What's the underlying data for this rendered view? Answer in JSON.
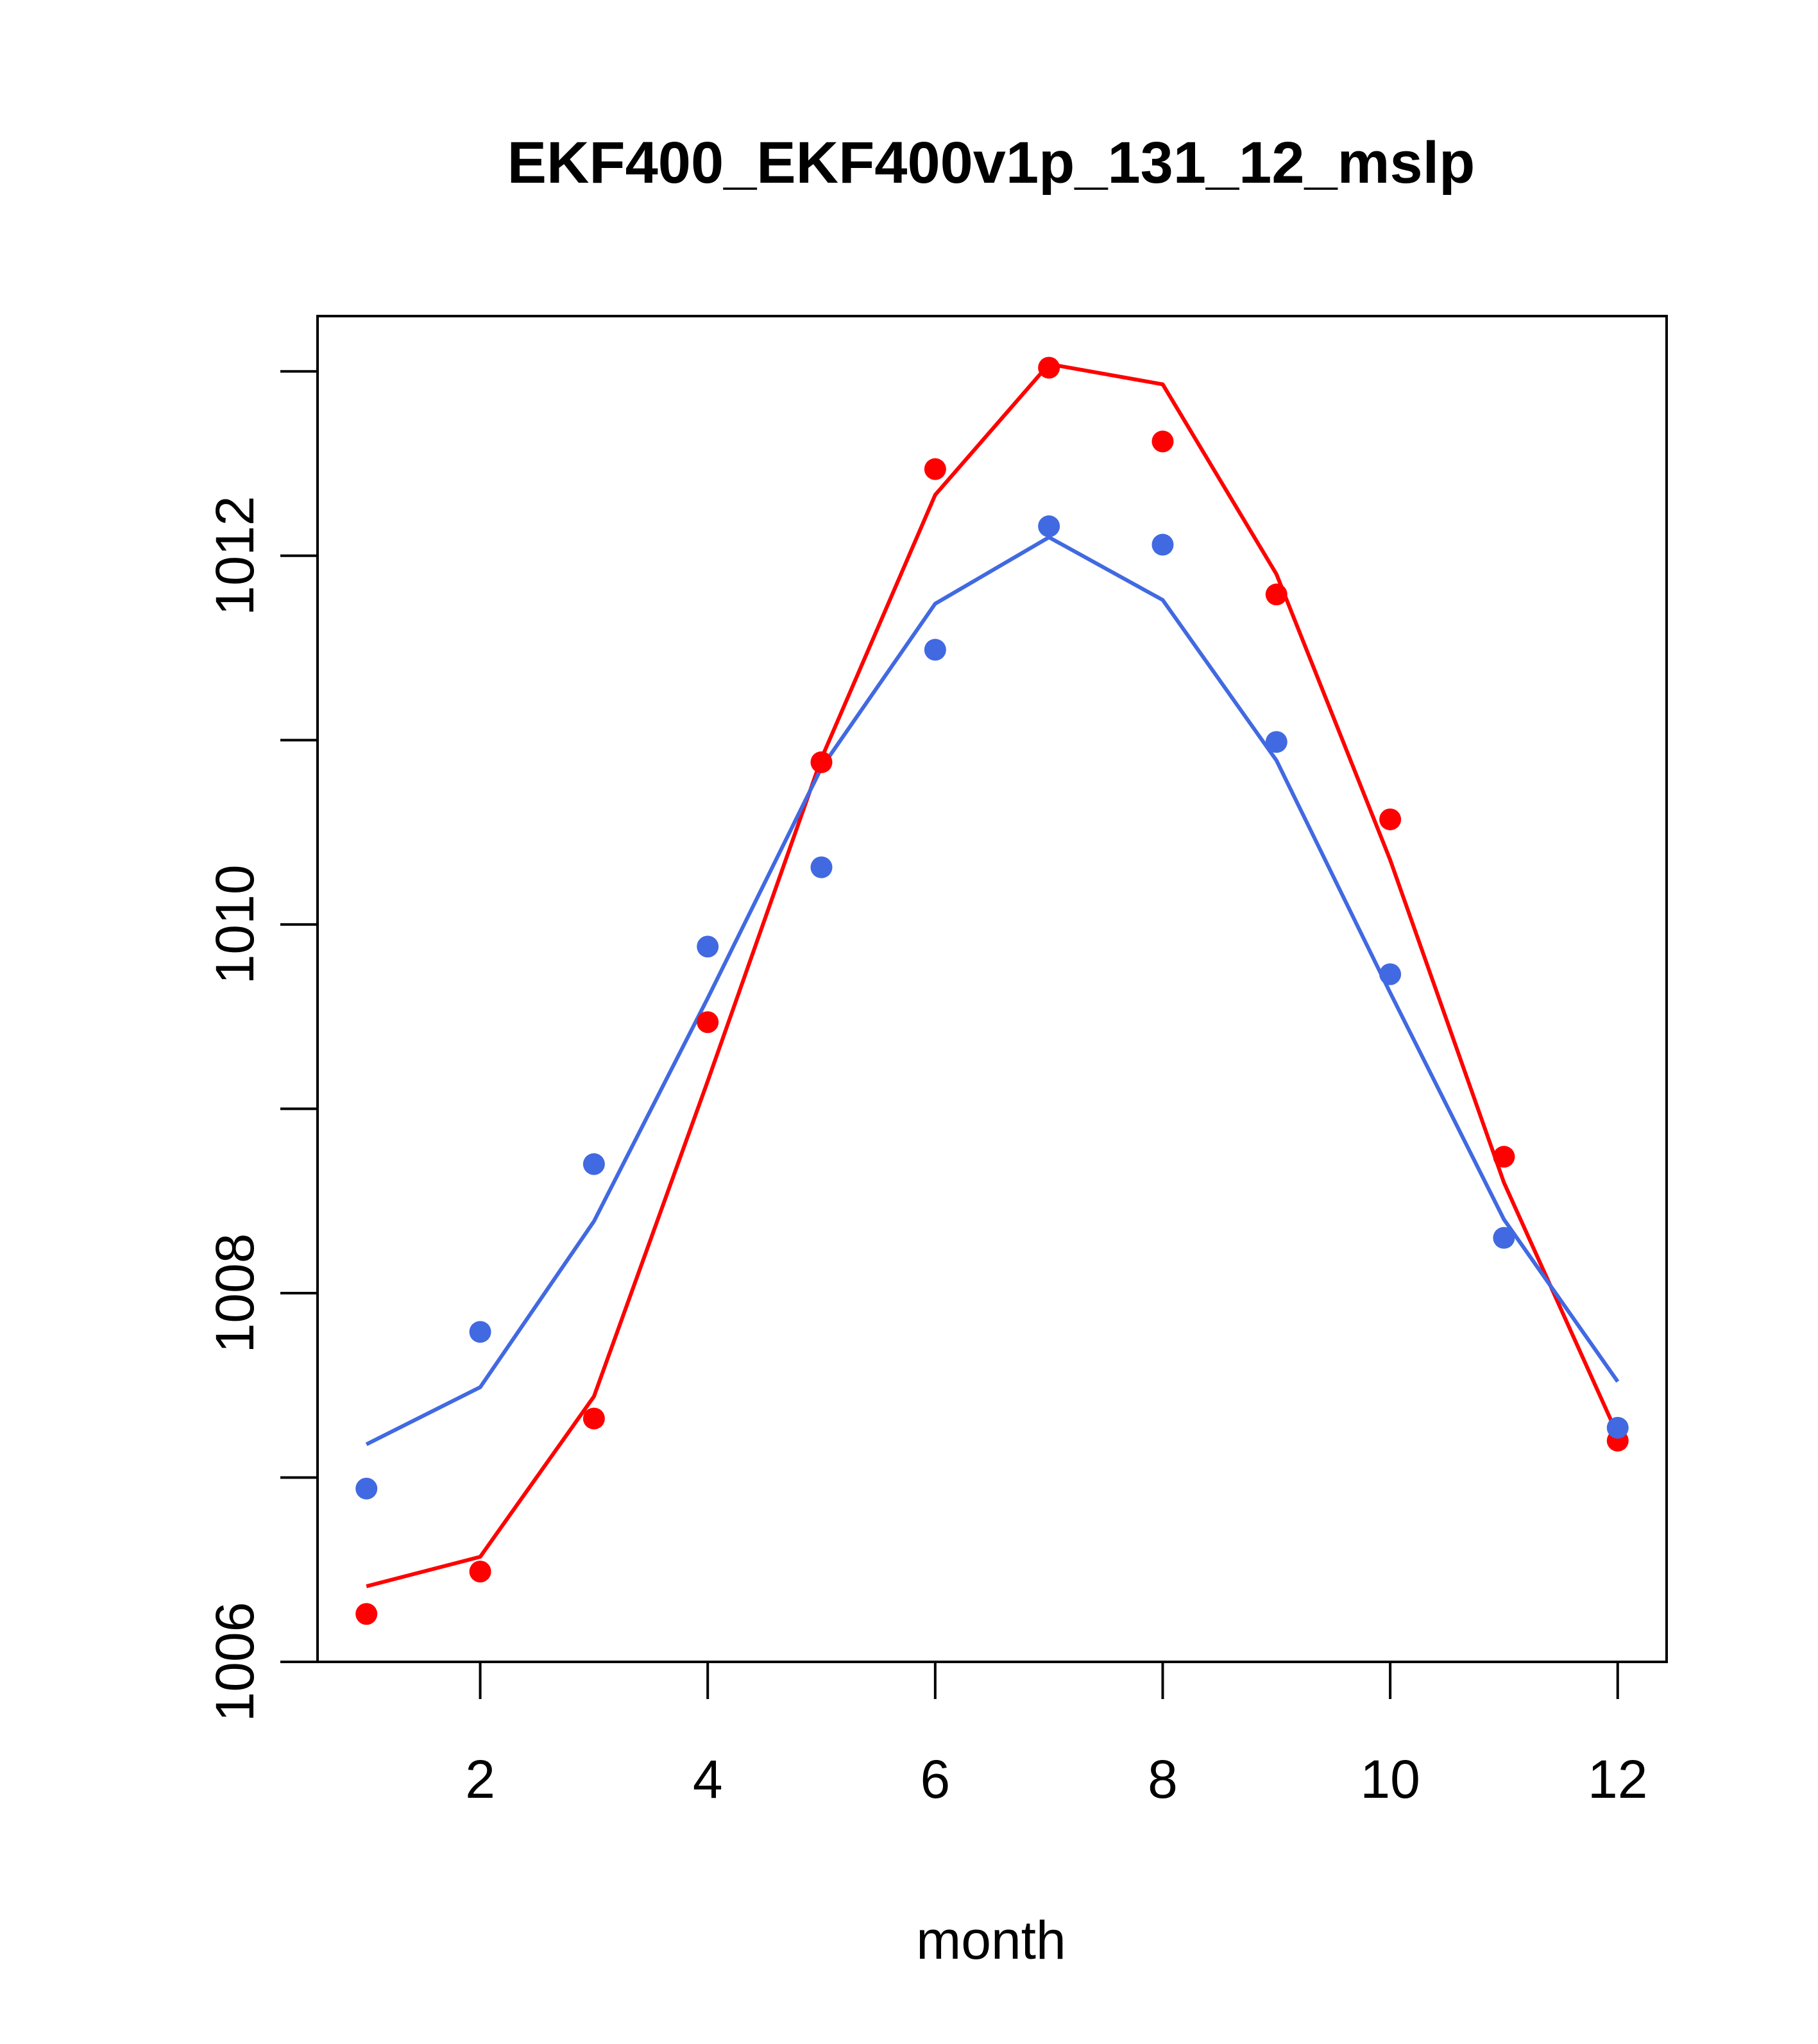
{
  "chart_data": {
    "type": "line",
    "title": "EKF400_EKF400v1p_131_12_mslp",
    "xlabel": "month",
    "ylabel": "",
    "xlim": [
      0.57,
      12.43
    ],
    "ylim": [
      1006.0,
      1013.3
    ],
    "x_ticks": [
      2,
      4,
      6,
      8,
      10,
      12
    ],
    "y_ticks": [
      1006,
      1007,
      1008,
      1009,
      1010,
      1011,
      1012,
      1013
    ],
    "y_tick_labels": [
      "1006",
      "",
      "1008",
      "",
      "1010",
      "",
      "1012",
      ""
    ],
    "x": [
      1,
      2,
      3,
      4,
      5,
      6,
      7,
      8,
      9,
      10,
      11,
      12
    ],
    "series": [
      {
        "name": "red",
        "color": "#ff0000",
        "line": [
          1006.41,
          1006.57,
          1007.44,
          1009.15,
          1010.9,
          1012.33,
          1013.04,
          1012.93,
          1011.9,
          1010.35,
          1008.6,
          1007.23
        ],
        "points": [
          1006.26,
          1006.49,
          1007.32,
          1009.47,
          1010.88,
          1012.47,
          1013.02,
          1012.62,
          1011.79,
          1010.57,
          1008.74,
          1007.2
        ]
      },
      {
        "name": "blue",
        "color": "#4169e1",
        "line": [
          1007.18,
          1007.49,
          1008.39,
          1009.6,
          1010.85,
          1011.74,
          1012.1,
          1011.76,
          1010.89,
          1009.63,
          1008.4,
          1007.52
        ],
        "points": [
          1006.94,
          1007.79,
          1008.7,
          1009.88,
          1010.31,
          1011.49,
          1012.16,
          1012.06,
          1010.99,
          1009.73,
          1008.3,
          1007.27
        ]
      }
    ]
  }
}
